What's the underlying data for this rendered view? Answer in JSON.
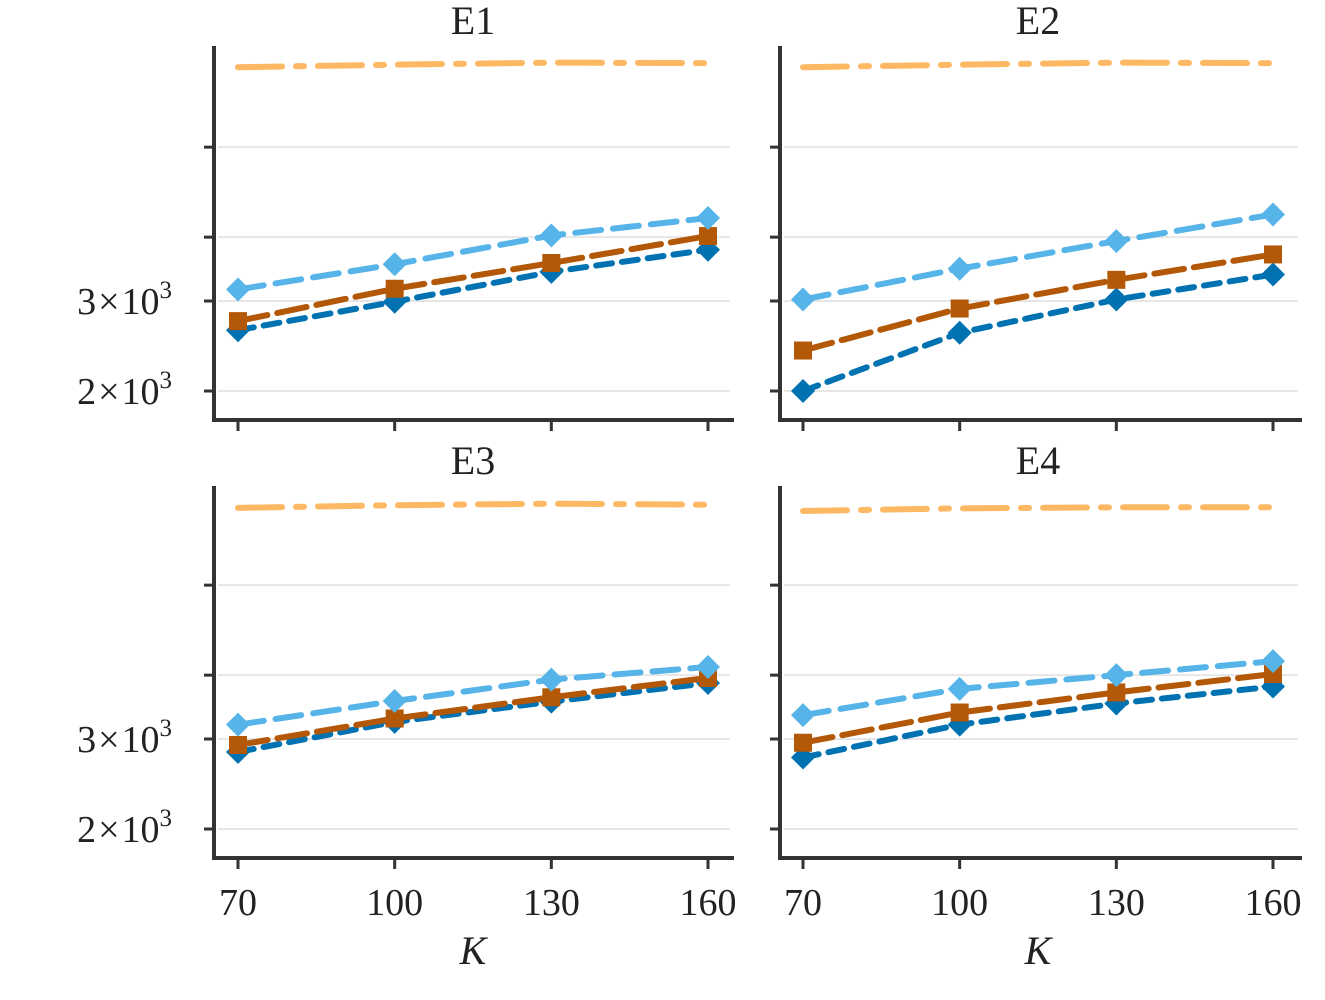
{
  "chart_data": {
    "type": "line",
    "y_scale": "log",
    "grid": "horizontal",
    "ylim": [
      1800,
      9500
    ],
    "x_ticks": [
      70,
      100,
      130,
      160
    ],
    "y_ticks": [
      2000,
      3000,
      4000,
      6000
    ],
    "xlabel": "K",
    "y_tick_labels": {
      "2000": [
        "2",
        "×",
        "10",
        "3"
      ],
      "3000": [
        "3",
        "×",
        "10",
        "3"
      ]
    },
    "colors": [
      "#0072b2",
      "#b35806",
      "#56b4e9",
      "#fdb863"
    ],
    "panels": [
      {
        "title": "E1",
        "series": [
          {
            "values": [
              2630,
              2990,
              3420,
              3780
            ],
            "color": "#0072b2",
            "dash": "16,10",
            "marker": "diamond"
          },
          {
            "values": [
              2740,
              3170,
              3560,
              4020
            ],
            "color": "#b35806",
            "dash": "30,10",
            "marker": "square"
          },
          {
            "values": [
              3160,
              3540,
              4030,
              4360
            ],
            "color": "#56b4e9",
            "dash": "26,12",
            "marker": "diamond"
          },
          {
            "values": [
              8600,
              8700,
              8780,
              8760
            ],
            "color": "#fdb863",
            "dash": "44,14,8,14",
            "marker": "none"
          }
        ]
      },
      {
        "title": "E2",
        "series": [
          {
            "values": [
              2000,
              2600,
              3020,
              3380
            ],
            "color": "#0072b2",
            "dash": "16,10",
            "marker": "diamond"
          },
          {
            "values": [
              2400,
              2900,
              3300,
              3700
            ],
            "color": "#b35806",
            "dash": "30,10",
            "marker": "square"
          },
          {
            "values": [
              3020,
              3470,
              3930,
              4430
            ],
            "color": "#56b4e9",
            "dash": "26,12",
            "marker": "diamond"
          },
          {
            "values": [
              8600,
              8700,
              8780,
              8760
            ],
            "color": "#fdb863",
            "dash": "44,14,8,14",
            "marker": "none"
          }
        ]
      },
      {
        "title": "E3",
        "series": [
          {
            "values": [
              2830,
              3240,
              3550,
              3860
            ],
            "color": "#0072b2",
            "dash": "16,10",
            "marker": "diamond"
          },
          {
            "values": [
              2920,
              3290,
              3620,
              3950
            ],
            "color": "#b35806",
            "dash": "30,10",
            "marker": "square"
          },
          {
            "values": [
              3200,
              3560,
              3920,
              4150
            ],
            "color": "#56b4e9",
            "dash": "26,12",
            "marker": "diamond"
          },
          {
            "values": [
              8500,
              8600,
              8660,
              8620
            ],
            "color": "#fdb863",
            "dash": "44,14,8,14",
            "marker": "none"
          }
        ]
      },
      {
        "title": "E4",
        "series": [
          {
            "values": [
              2760,
              3200,
              3520,
              3800
            ],
            "color": "#0072b2",
            "dash": "16,10",
            "marker": "diamond"
          },
          {
            "values": [
              2950,
              3380,
              3700,
              4020
            ],
            "color": "#b35806",
            "dash": "30,10",
            "marker": "square"
          },
          {
            "values": [
              3340,
              3760,
              4000,
              4260
            ],
            "color": "#56b4e9",
            "dash": "26,12",
            "marker": "diamond"
          },
          {
            "values": [
              8380,
              8480,
              8520,
              8520
            ],
            "color": "#fdb863",
            "dash": "44,14,8,14",
            "marker": "none"
          }
        ]
      }
    ]
  }
}
